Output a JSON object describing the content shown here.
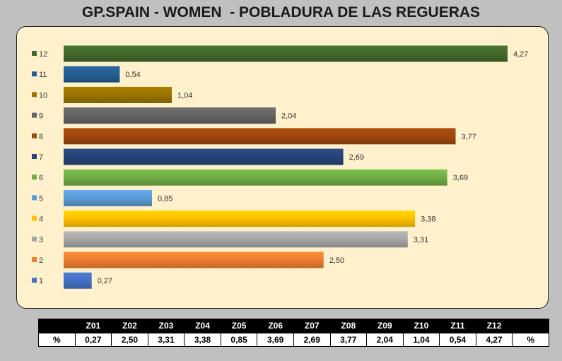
{
  "title": "GP.SPAIN - WOMEN  - POBLADURA DE LAS REGUERAS",
  "chart_data": {
    "type": "bar",
    "orientation": "horizontal",
    "categories": [
      "1",
      "2",
      "3",
      "4",
      "5",
      "6",
      "7",
      "8",
      "9",
      "10",
      "11",
      "12"
    ],
    "values": [
      0.27,
      2.5,
      3.31,
      3.38,
      0.85,
      3.69,
      2.69,
      3.77,
      2.04,
      1.04,
      0.54,
      4.27
    ],
    "value_labels": [
      "0,27",
      "2,50",
      "3,31",
      "3,38",
      "0,85",
      "3,69",
      "2,69",
      "3,77",
      "2,04",
      "1,04",
      "0,54",
      "4,27"
    ],
    "colors": [
      "#4472c4",
      "#ed7d31",
      "#a5a5a5",
      "#ffc000",
      "#5b9bd5",
      "#70ad47",
      "#264478",
      "#9e480e",
      "#636363",
      "#997300",
      "#255e91",
      "#43682b"
    ],
    "xlim": [
      0,
      4.27
    ],
    "grid": false,
    "legend": "none"
  },
  "table": {
    "headers": [
      "",
      "Z01",
      "Z02",
      "Z03",
      "Z04",
      "Z05",
      "Z06",
      "Z07",
      "Z08",
      "Z09",
      "Z10",
      "Z11",
      "Z12",
      ""
    ],
    "row": [
      "%",
      "0,27",
      "2,50",
      "3,31",
      "3,38",
      "0,85",
      "3,69",
      "2,69",
      "3,77",
      "2,04",
      "1,04",
      "0,54",
      "4,27",
      "%"
    ]
  }
}
